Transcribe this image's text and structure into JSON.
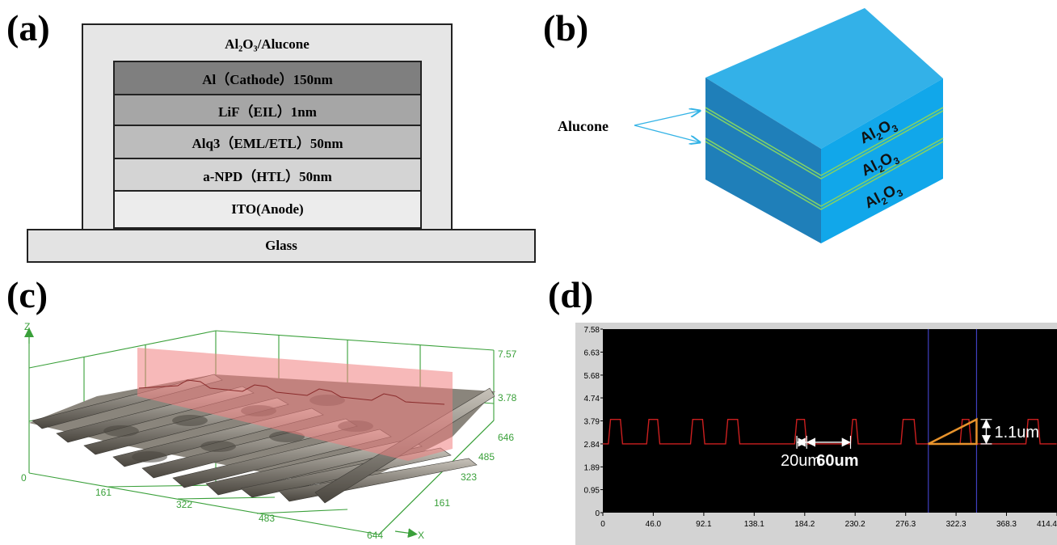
{
  "panels": {
    "a": "(a)",
    "b": "(b)",
    "c": "(c)",
    "d": "(d)"
  },
  "panel_a": {
    "encapsulation": "Al₂O₃/Alucone",
    "layers": [
      "Al（Cathode）150nm",
      "LiF（EIL）1nm",
      "Alq3（EML/ETL）50nm",
      "a-NPD（HTL）50nm",
      "ITO(Anode)"
    ],
    "substrate": "Glass",
    "colors": {
      "outer": "#e6e6e6",
      "cathode": "#7f7f7f",
      "lif": "#a6a6a6",
      "alq3": "#bcbcbc",
      "npd": "#d4d4d4",
      "ito": "#ececec",
      "glass": "#e3e3e3"
    }
  },
  "panel_b": {
    "pointer_label": "Alucone",
    "block_layer_label": "Al",
    "block_layer_sub": "2",
    "block_layer_suffix": "O",
    "block_layer_sub2": "3",
    "colors": {
      "top": "#33b1e8",
      "left": "#1f7fb9",
      "right": "#11a7ea",
      "stripe": "#7fd06a"
    }
  },
  "panel_c": {
    "z_axis": "Z",
    "x_axis": "X",
    "z_ticks": [
      "7.577",
      "3.788"
    ],
    "x_ticks": [
      "0",
      "161",
      "322",
      "483",
      "644"
    ],
    "y_ticks": [
      "161",
      "323",
      "485",
      "646"
    ],
    "colors": {
      "grid": "#3aa03a",
      "section": "#f08080"
    }
  },
  "panel_d": {
    "y_ticks": [
      "7.58",
      "6.63",
      "5.68",
      "4.74",
      "3.79",
      "2.84",
      "1.89",
      "0.95",
      "0"
    ],
    "x_ticks": [
      "0",
      "46.0",
      "92.1",
      "138.1",
      "184.2",
      "230.2",
      "276.3",
      "322.3",
      "368.3",
      "414.4"
    ],
    "annotation_gap": "20um",
    "annotation_width": "60um",
    "annotation_height": "1.1um",
    "colors": {
      "profile": "#cc1f1f",
      "cursor": "#4040c0",
      "marker": "#e8932c",
      "background": "#000000"
    }
  },
  "chart_data": {
    "type": "line",
    "x": [
      0,
      5,
      7,
      16,
      18,
      40,
      42,
      50,
      52,
      80,
      82,
      91,
      93,
      112,
      114,
      123,
      125,
      175,
      177,
      184,
      186,
      226,
      228,
      231,
      233,
      272,
      274,
      284,
      286,
      326,
      328,
      334,
      336,
      386,
      388,
      397,
      399,
      414
    ],
    "y": [
      2.84,
      2.84,
      3.85,
      3.85,
      2.84,
      2.84,
      3.85,
      3.85,
      2.84,
      2.84,
      3.85,
      3.85,
      2.84,
      2.84,
      3.85,
      3.85,
      2.84,
      2.84,
      3.85,
      3.85,
      2.84,
      2.84,
      3.85,
      3.85,
      2.84,
      2.84,
      3.85,
      3.85,
      2.84,
      2.84,
      3.85,
      3.85,
      2.84,
      2.84,
      3.85,
      3.85,
      2.84,
      2.84
    ],
    "xlim": [
      0,
      414.4
    ],
    "ylim": [
      0,
      7.58
    ],
    "xticks": [
      0,
      46.0,
      92.1,
      138.1,
      184.2,
      230.2,
      276.3,
      322.3,
      368.3,
      414.4
    ],
    "yticks": [
      7.58,
      6.63,
      5.68,
      4.74,
      3.79,
      2.84,
      1.89,
      0.95,
      0
    ],
    "cursors_x": [
      297,
      341
    ]
  }
}
